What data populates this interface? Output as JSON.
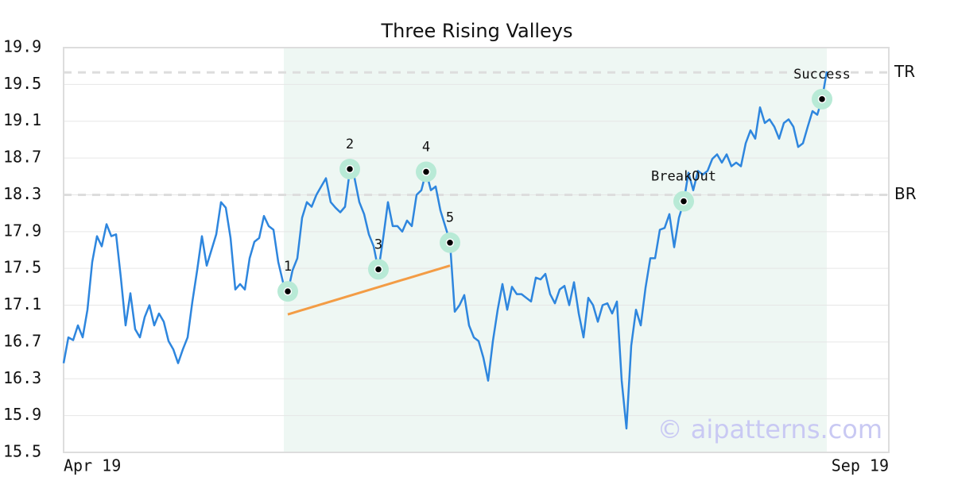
{
  "chart_data": {
    "type": "line",
    "title": "Three Rising Valleys",
    "categories": [
      "Apr 19",
      null,
      null,
      null,
      null,
      null,
      null,
      null,
      null,
      null,
      null,
      null,
      null,
      null,
      null,
      null,
      null,
      null,
      null,
      null,
      null,
      null,
      null,
      null,
      null,
      null,
      null,
      null,
      null,
      null,
      null,
      null,
      null,
      null,
      null,
      null,
      null,
      null,
      null,
      null,
      null,
      null,
      null,
      null,
      null,
      null,
      null,
      null,
      null,
      null,
      null,
      null,
      null,
      null,
      null,
      null,
      null,
      null,
      null,
      null,
      null,
      null,
      null,
      null,
      null,
      null,
      null,
      null,
      null,
      null,
      null,
      null,
      null,
      null,
      null,
      null,
      null,
      null,
      null,
      null,
      null,
      null,
      null,
      null,
      null,
      null,
      null,
      null,
      null,
      null,
      null,
      null,
      null,
      null,
      null,
      null,
      null,
      null,
      null,
      null,
      null,
      null,
      null,
      null,
      null,
      null,
      null,
      null,
      null,
      null,
      null,
      null,
      null,
      null,
      null,
      null,
      null,
      null,
      null,
      null,
      null,
      null,
      null,
      null,
      null,
      null,
      null,
      null,
      null,
      null,
      null,
      null,
      null,
      null,
      null,
      null,
      null,
      null,
      null,
      null,
      null,
      null,
      null,
      null,
      null,
      null,
      null,
      null,
      null,
      null,
      null,
      null,
      null,
      null,
      null,
      null,
      null,
      null,
      null,
      null,
      "Sep 19"
    ],
    "values": [
      16.47,
      16.75,
      16.72,
      16.88,
      16.75,
      17.05,
      17.57,
      17.85,
      17.74,
      17.98,
      17.85,
      17.87,
      17.4,
      16.88,
      17.23,
      16.84,
      16.75,
      16.97,
      17.1,
      16.88,
      17.01,
      16.92,
      16.71,
      16.62,
      16.47,
      16.62,
      16.75,
      17.14,
      17.48,
      17.85,
      17.53,
      17.7,
      17.87,
      18.22,
      18.16,
      17.83,
      17.27,
      17.33,
      17.27,
      17.61,
      17.79,
      17.83,
      18.07,
      17.96,
      17.92,
      17.57,
      17.35,
      17.24,
      17.48,
      17.61,
      18.05,
      18.22,
      18.17,
      18.3,
      18.39,
      18.48,
      18.22,
      18.16,
      18.11,
      18.17,
      18.56,
      18.48,
      18.22,
      18.09,
      17.87,
      17.74,
      17.48,
      17.83,
      18.22,
      17.96,
      17.96,
      17.9,
      18.02,
      17.96,
      18.3,
      18.35,
      18.55,
      18.35,
      18.39,
      18.13,
      17.96,
      17.79,
      17.03,
      17.1,
      17.21,
      16.88,
      16.75,
      16.71,
      16.53,
      16.28,
      16.71,
      17.05,
      17.33,
      17.05,
      17.3,
      17.22,
      17.22,
      17.18,
      17.14,
      17.4,
      17.38,
      17.44,
      17.22,
      17.12,
      17.27,
      17.31,
      17.1,
      17.35,
      17.01,
      16.75,
      17.18,
      17.1,
      16.92,
      17.1,
      17.12,
      17.01,
      17.14,
      16.28,
      15.76,
      16.66,
      17.05,
      16.88,
      17.29,
      17.61,
      17.61,
      17.92,
      17.94,
      18.09,
      17.73,
      18.05,
      18.22,
      18.54,
      18.35,
      18.56,
      18.52,
      18.56,
      18.69,
      18.74,
      18.65,
      18.74,
      18.61,
      18.65,
      18.61,
      18.86,
      19.0,
      18.91,
      19.25,
      19.08,
      19.12,
      19.04,
      18.91,
      19.08,
      19.12,
      19.04,
      18.82,
      18.86,
      19.04,
      19.21,
      19.17,
      19.34,
      19.64
    ],
    "color": "#2e86de",
    "ylim": [
      15.5,
      19.9
    ],
    "yticks": [
      15.5,
      15.9,
      16.3,
      16.7,
      17.1,
      17.5,
      17.9,
      18.3,
      18.7,
      19.1,
      19.5,
      19.9
    ],
    "grid": true,
    "reference_lines": [
      {
        "label": "TR",
        "value": 19.63
      },
      {
        "label": "BR",
        "value": 18.3
      }
    ],
    "markers": [
      {
        "label": "1",
        "x": 47,
        "value": 17.25
      },
      {
        "label": "2",
        "x": 60,
        "value": 18.58
      },
      {
        "label": "3",
        "x": 66,
        "value": 17.49
      },
      {
        "label": "4",
        "x": 76,
        "value": 18.55
      },
      {
        "label": "5",
        "x": 81,
        "value": 17.78
      },
      {
        "label": "BreakOut",
        "x": 130,
        "value": 18.23
      },
      {
        "label": "Success",
        "x": 159,
        "value": 19.34
      }
    ],
    "trendline": {
      "x": [
        47,
        81
      ],
      "values": [
        17.0,
        17.53
      ],
      "color": "#f39c45"
    },
    "watermark": "© aipatterns.com"
  }
}
